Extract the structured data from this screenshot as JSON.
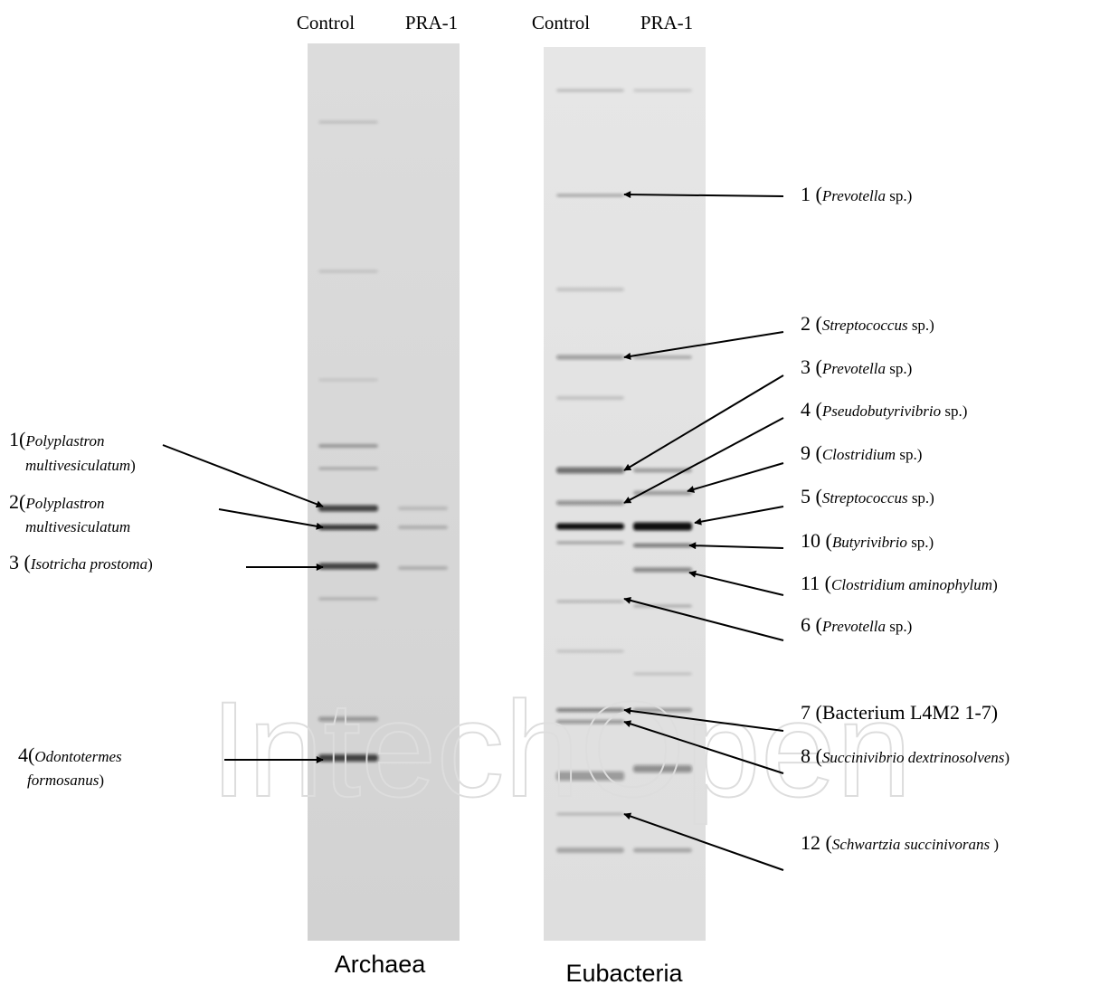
{
  "lane_headers": [
    "Control",
    "PRA-1",
    "Control",
    "PRA-1"
  ],
  "panels": [
    "Archaea",
    "Eubacteria"
  ],
  "watermark": "IntechOpen",
  "left_labels": [
    {
      "lines": [
        [
          {
            "text": "1("
          },
          {
            "text": "Polyplastron",
            "italic": true
          }
        ],
        [
          {
            "text": "multivesiculatum",
            "italic": true
          },
          {
            "text": ")"
          }
        ]
      ]
    },
    {
      "lines": [
        [
          {
            "text": "2("
          },
          {
            "text": "Polyplastron",
            "italic": true
          }
        ],
        [
          {
            "text": "multivesiculatum",
            "italic": true
          }
        ]
      ]
    },
    {
      "lines": [
        [
          {
            "text": "3 ("
          },
          {
            "text": "Isotricha prostoma",
            "italic": true
          },
          {
            "text": ")"
          }
        ]
      ]
    },
    {
      "lines": [
        [
          {
            "text": "4("
          },
          {
            "text": "Odontotermes",
            "italic": true
          }
        ],
        [
          {
            "text": "formosanus",
            "italic": true
          },
          {
            "text": ")"
          }
        ]
      ]
    }
  ],
  "right_labels": [
    [
      {
        "text": "1 ("
      },
      {
        "text": "Prevotella",
        "italic": true
      },
      {
        "text": " sp.)"
      }
    ],
    [
      {
        "text": "2 ("
      },
      {
        "text": "Streptococcus",
        "italic": true
      },
      {
        "text": " sp.)"
      }
    ],
    [
      {
        "text": "3 ("
      },
      {
        "text": "Prevotella",
        "italic": true
      },
      {
        "text": " sp.)"
      }
    ],
    [
      {
        "text": "4 ("
      },
      {
        "text": "Pseudobutyrivibrio",
        "italic": true
      },
      {
        "text": " sp.)"
      }
    ],
    [
      {
        "text": "9 ("
      },
      {
        "text": "Clostridium",
        "italic": true
      },
      {
        "text": " sp.)"
      }
    ],
    [
      {
        "text": "5 ("
      },
      {
        "text": "Streptococcus",
        "italic": true
      },
      {
        "text": " sp.)"
      }
    ],
    [
      {
        "text": "10 ("
      },
      {
        "text": "Butyrivibrio",
        "italic": true
      },
      {
        "text": " sp.)"
      }
    ],
    [
      {
        "text": "11 ("
      },
      {
        "text": "Clostridium aminophylum",
        "italic": true
      },
      {
        "text": ")"
      }
    ],
    [
      {
        "text": "6 ("
      },
      {
        "text": "Prevotella",
        "italic": true
      },
      {
        "text": " sp.)"
      }
    ],
    [
      {
        "text": "7 (Bacterium L4M2 1-7)"
      }
    ],
    [
      {
        "text": "8 ("
      },
      {
        "text": "Succinivibrio dextrinosolvens",
        "italic": true
      },
      {
        "text": ")"
      }
    ],
    [
      {
        "text": "12 ("
      },
      {
        "text": "Schwartzia succinivorans",
        "italic": true
      },
      {
        "text": " )"
      }
    ]
  ]
}
